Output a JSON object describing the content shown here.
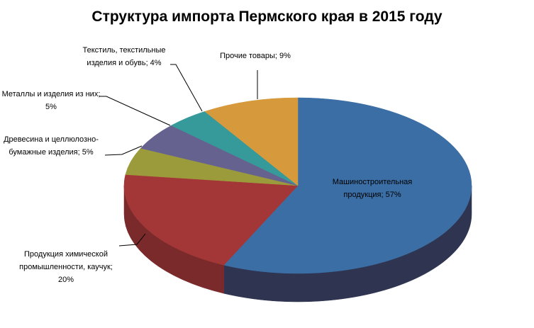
{
  "chart_data": {
    "type": "pie",
    "title": "Структура импорта Пермского края в 2015 году",
    "three_d": true,
    "start_angle": "top, clockwise",
    "slices": [
      {
        "label": "Машиностроительная продукция; 57%",
        "value": 57,
        "color": "#3a6ea5",
        "side": "#2f3550"
      },
      {
        "label": "Продукция химической промышленности, каучук; 20%",
        "value": 20,
        "color": "#a33636",
        "side": "#7a2a2a"
      },
      {
        "label": "Древесина и целлюлозно-бумажные изделия; 5%",
        "value": 5,
        "color": "#9b9b3c",
        "side": "#72722c"
      },
      {
        "label": "Металлы и изделия из них; 5%",
        "value": 5,
        "color": "#65628f",
        "side": "#4a486a"
      },
      {
        "label": "Текстиль, текстильные изделия и обувь; 4%",
        "value": 4,
        "color": "#36999a",
        "side": "#287273"
      },
      {
        "label": "Прочие товары; 9%",
        "value": 9,
        "color": "#d69a3c",
        "side": "#a0732c"
      }
    ],
    "legend": "none",
    "data_labels": "outside with leader lines"
  }
}
